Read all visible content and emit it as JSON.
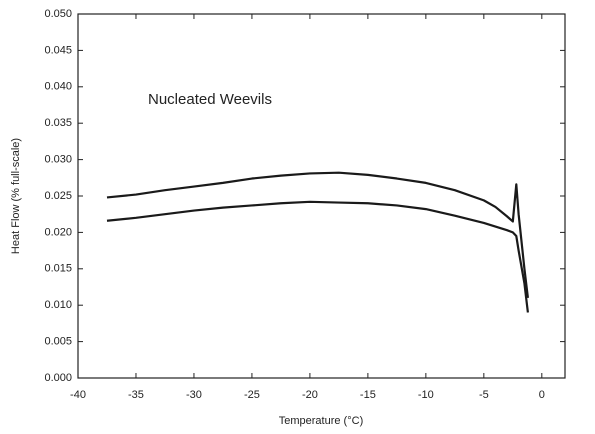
{
  "chart_data": {
    "type": "line",
    "annotation": "Nucleated Weevils",
    "x_label": "Temperature (°C)",
    "y_label": "Heat Flow (% full-scale)",
    "x": [
      -37.5,
      -35,
      -32.5,
      -30,
      -27.5,
      -25,
      -22.5,
      -20,
      -17.5,
      -15,
      -12.5,
      -10,
      -7.5,
      -5,
      -4,
      -3,
      -2.5,
      -2.2,
      -2,
      -1.5,
      -1.2
    ],
    "series": [
      {
        "color": "#1a1a1a",
        "values": [
          0.0248,
          0.0252,
          0.0258,
          0.0263,
          0.0268,
          0.0274,
          0.0278,
          0.0281,
          0.0282,
          0.0279,
          0.0274,
          0.0268,
          0.0258,
          0.0244,
          0.0235,
          0.0222,
          0.0215,
          0.0266,
          0.0225,
          0.015,
          0.011
        ]
      },
      {
        "color": "#1a1a1a",
        "values": [
          0.0216,
          0.022,
          0.0225,
          0.023,
          0.0234,
          0.0237,
          0.024,
          0.0242,
          0.0241,
          0.024,
          0.0237,
          0.0232,
          0.0223,
          0.0213,
          0.0208,
          0.0203,
          0.02,
          0.0195,
          0.0175,
          0.013,
          0.009
        ]
      }
    ],
    "xlim": [
      -40,
      2
    ],
    "xticks": [
      -40,
      -35,
      -30,
      -25,
      -20,
      -15,
      -10,
      -5,
      0
    ],
    "ylim": [
      0,
      0.05
    ],
    "yticks": [
      {
        "value": 0,
        "label": "0.000"
      },
      {
        "value": 0.005,
        "label": "0.005"
      },
      {
        "value": 0.01,
        "label": "0.010"
      },
      {
        "value": 0.015,
        "label": "0.015"
      },
      {
        "value": 0.02,
        "label": "0.020"
      },
      {
        "value": 0.025,
        "label": "0.025"
      },
      {
        "value": 0.03,
        "label": "0.030"
      },
      {
        "value": 0.035,
        "label": "0.035"
      },
      {
        "value": 0.04,
        "label": "0.040"
      },
      {
        "value": 0.045,
        "label": "0.045"
      },
      {
        "value": 0.05,
        "label": "0.050"
      }
    ],
    "grid": false
  }
}
